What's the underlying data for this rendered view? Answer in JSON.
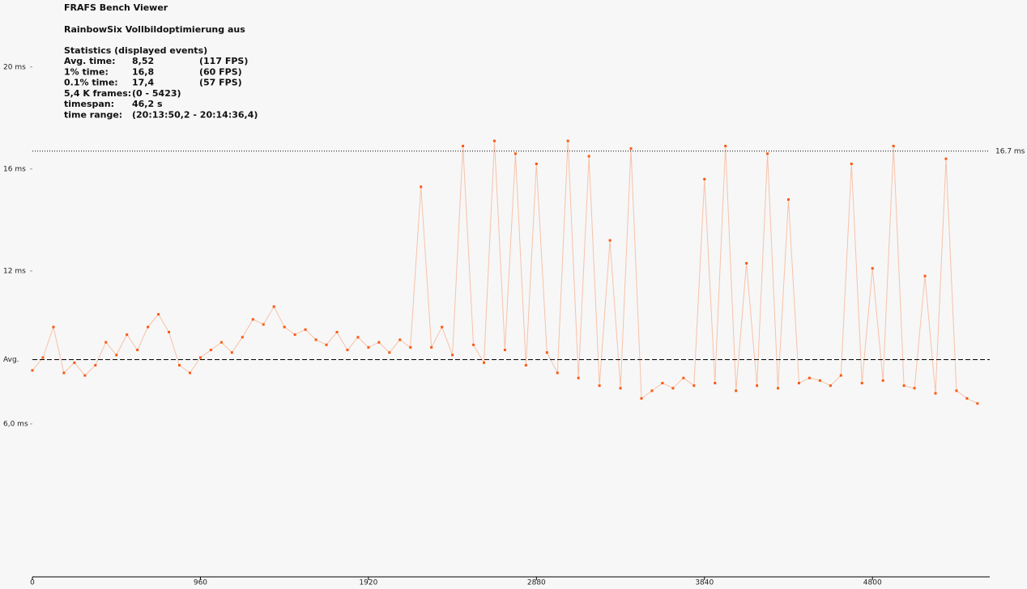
{
  "chart_data": {
    "type": "scatter",
    "title": "FRAFS Bench Viewer",
    "subtitle": "RainbowSix Vollbildoptimierung aus",
    "statistics": {
      "heading": "Statistics (displayed events)",
      "rows": [
        [
          "Avg. time:",
          "8,52",
          "(117 FPS)"
        ],
        [
          "1% time:",
          "16,8",
          "(60 FPS)"
        ],
        [
          "0.1% time:",
          "17,4",
          "(57 FPS)"
        ],
        [
          "5,4 K frames:",
          "(0 - 5423)",
          ""
        ],
        [
          "timespan:",
          "46,2 s",
          ""
        ],
        [
          "time range:",
          "(20:13:50,2 - 20:14:36,4)",
          ""
        ]
      ]
    },
    "x": [
      0,
      60,
      120,
      180,
      240,
      300,
      360,
      420,
      480,
      540,
      600,
      660,
      720,
      780,
      840,
      900,
      960,
      1020,
      1080,
      1140,
      1200,
      1260,
      1320,
      1380,
      1440,
      1500,
      1560,
      1620,
      1680,
      1740,
      1800,
      1860,
      1920,
      1980,
      2040,
      2100,
      2160,
      2220,
      2280,
      2340,
      2400,
      2460,
      2520,
      2580,
      2640,
      2700,
      2760,
      2820,
      2880,
      2940,
      3000,
      3060,
      3120,
      3180,
      3240,
      3300,
      3360,
      3420,
      3480,
      3540,
      3600,
      3660,
      3720,
      3780,
      3840,
      3900,
      3960,
      4020,
      4080,
      4140,
      4200,
      4260,
      4320,
      4380,
      4440,
      4500,
      4560,
      4620,
      4680,
      4740,
      4800,
      4860,
      4920,
      4980,
      5040,
      5100,
      5160,
      5220,
      5280,
      5340,
      5400
    ],
    "series": [
      {
        "color": "#f95a12",
        "line_color": "#f7c2aa",
        "values": [
          8.1,
          8.6,
          9.8,
          8.0,
          8.4,
          7.9,
          8.3,
          9.2,
          8.7,
          9.5,
          8.9,
          9.8,
          10.3,
          9.6,
          8.3,
          8.0,
          8.6,
          8.9,
          9.2,
          8.8,
          9.4,
          10.1,
          9.9,
          10.6,
          9.8,
          9.5,
          9.7,
          9.3,
          9.1,
          9.6,
          8.9,
          9.4,
          9.0,
          9.2,
          8.8,
          9.3,
          9.0,
          15.3,
          9.0,
          9.8,
          8.7,
          16.9,
          9.1,
          8.4,
          17.1,
          8.9,
          16.6,
          8.3,
          16.2,
          8.8,
          8.0,
          17.1,
          7.8,
          16.5,
          7.5,
          13.2,
          7.4,
          16.8,
          7.0,
          7.3,
          7.6,
          7.4,
          7.8,
          7.5,
          15.6,
          7.6,
          16.9,
          7.3,
          12.3,
          7.5,
          16.6,
          7.4,
          14.8,
          7.6,
          7.8,
          7.7,
          7.5,
          7.9,
          16.2,
          7.6,
          12.1,
          7.7,
          16.9,
          7.5,
          7.4,
          11.8,
          7.2,
          16.4,
          7.3,
          7.0,
          6.8
        ]
      }
    ],
    "xlim": [
      0,
      5470
    ],
    "ylim": [
      0,
      22.5
    ],
    "xticks": [
      0,
      960,
      1920,
      2880,
      3840,
      4800
    ],
    "yticks": [
      {
        "value": 20,
        "label": "20 ms"
      },
      {
        "value": 16,
        "label": "16 ms"
      },
      {
        "value": 12,
        "label": "12 ms"
      },
      {
        "value": 6,
        "label": "6,0 ms"
      }
    ],
    "reference_lines": [
      {
        "value": 16.7,
        "label": "16.7 ms",
        "style": "dotted"
      },
      {
        "value": 8.52,
        "label": "Avg.",
        "style": "dashed"
      }
    ]
  }
}
